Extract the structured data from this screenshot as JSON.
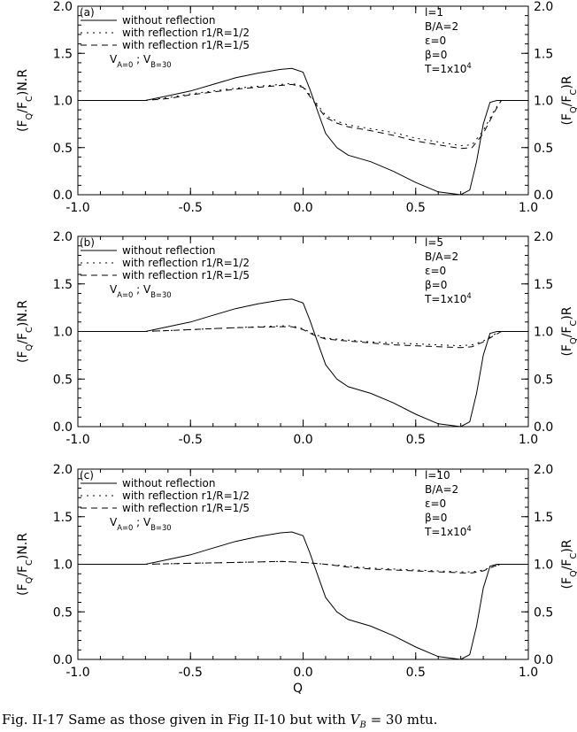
{
  "caption": {
    "prefix": "Fig. II-17 Same as those given in Fig II-10 but with ",
    "var_main": "V",
    "var_sub": "B",
    "suffix": " = 30 mtu."
  },
  "chart_data": [
    {
      "type": "line",
      "panel_label": "(a)",
      "xlabel": "",
      "ylabel_left": "(F_Q/F_C)N.R",
      "ylabel_right": "(F_Q/F_C)R",
      "xlim": [
        -1.0,
        1.0
      ],
      "ylim": [
        0.0,
        2.0
      ],
      "xticks": [
        "-1.0",
        "-0.5",
        "0.0",
        "0.5",
        "1.0"
      ],
      "yticks": [
        "0.0",
        "0.5",
        "1.0",
        "1.5",
        "2.0"
      ],
      "legend": [
        "without reflection",
        "with reflection r1/R=1/2",
        "with reflection r1/R=1/5"
      ],
      "velocity_note": "V_A=0 ; V_B=30",
      "params": [
        "l=1",
        "B/A=2",
        "ε=0",
        "β=0",
        "T=1x10^4"
      ],
      "series": [
        {
          "name": "without reflection",
          "style": "solid",
          "x": [
            -1.0,
            -0.7,
            -0.6,
            -0.5,
            -0.4,
            -0.3,
            -0.2,
            -0.1,
            -0.05,
            0.0,
            0.03,
            0.07,
            0.1,
            0.15,
            0.2,
            0.3,
            0.4,
            0.5,
            0.6,
            0.7,
            0.74,
            0.77,
            0.8,
            0.83,
            0.86,
            0.9,
            1.0
          ],
          "y": [
            1.0,
            1.0,
            1.05,
            1.1,
            1.17,
            1.24,
            1.29,
            1.33,
            1.34,
            1.3,
            1.12,
            0.85,
            0.65,
            0.5,
            0.42,
            0.35,
            0.25,
            0.13,
            0.03,
            0.0,
            0.05,
            0.35,
            0.75,
            0.98,
            1.0,
            1.0,
            1.0
          ]
        },
        {
          "name": "with reflection r1/R=1/2",
          "style": "dotted",
          "x": [
            -1.0,
            -0.7,
            -0.6,
            -0.5,
            -0.4,
            -0.3,
            -0.2,
            -0.1,
            -0.05,
            0.0,
            0.05,
            0.1,
            0.15,
            0.2,
            0.3,
            0.4,
            0.5,
            0.6,
            0.7,
            0.75,
            0.8,
            0.85,
            0.88,
            1.0
          ],
          "y": [
            1.0,
            1.0,
            1.03,
            1.07,
            1.1,
            1.13,
            1.15,
            1.17,
            1.18,
            1.15,
            1.0,
            0.84,
            0.78,
            0.74,
            0.7,
            0.66,
            0.6,
            0.56,
            0.52,
            0.53,
            0.68,
            0.9,
            1.0,
            1.0
          ]
        },
        {
          "name": "with reflection r1/R=1/5",
          "style": "dashed",
          "x": [
            -1.0,
            -0.7,
            -0.6,
            -0.5,
            -0.4,
            -0.3,
            -0.2,
            -0.1,
            -0.05,
            0.0,
            0.05,
            0.1,
            0.15,
            0.2,
            0.3,
            0.4,
            0.5,
            0.6,
            0.7,
            0.75,
            0.8,
            0.85,
            0.88,
            1.0
          ],
          "y": [
            1.0,
            1.0,
            1.02,
            1.06,
            1.09,
            1.12,
            1.14,
            1.16,
            1.17,
            1.14,
            0.98,
            0.82,
            0.76,
            0.72,
            0.68,
            0.63,
            0.57,
            0.53,
            0.49,
            0.5,
            0.65,
            0.88,
            1.0,
            1.0
          ]
        }
      ]
    },
    {
      "type": "line",
      "panel_label": "(b)",
      "xlabel": "",
      "ylabel_left": "(F_Q/F_C)N.R",
      "ylabel_right": "(F_Q/F_C)R",
      "xlim": [
        -1.0,
        1.0
      ],
      "ylim": [
        0.0,
        2.0
      ],
      "xticks": [
        "-1.0",
        "-0.5",
        "0.0",
        "0.5",
        "1.0"
      ],
      "yticks": [
        "0.0",
        "0.5",
        "1.0",
        "1.5",
        "2.0"
      ],
      "legend": [
        "without reflection",
        "with reflection r1/R=1/2",
        "with reflection r1/R=1/5"
      ],
      "velocity_note": "V_A=0 ; V_B=30",
      "params": [
        "l=5",
        "B/A=2",
        "ε=0",
        "β=0",
        "T=1x10^4"
      ],
      "series": [
        {
          "name": "without reflection",
          "style": "solid",
          "x": [
            -1.0,
            -0.7,
            -0.6,
            -0.5,
            -0.4,
            -0.3,
            -0.2,
            -0.1,
            -0.05,
            0.0,
            0.03,
            0.07,
            0.1,
            0.15,
            0.2,
            0.3,
            0.4,
            0.5,
            0.6,
            0.7,
            0.74,
            0.77,
            0.8,
            0.83,
            0.86,
            0.9,
            1.0
          ],
          "y": [
            1.0,
            1.0,
            1.05,
            1.1,
            1.17,
            1.24,
            1.29,
            1.33,
            1.34,
            1.3,
            1.12,
            0.85,
            0.65,
            0.5,
            0.42,
            0.35,
            0.25,
            0.13,
            0.03,
            0.0,
            0.05,
            0.35,
            0.75,
            0.98,
            1.0,
            1.0,
            1.0
          ]
        },
        {
          "name": "with reflection r1/R=1/2",
          "style": "dotted",
          "x": [
            -1.0,
            -0.7,
            -0.5,
            -0.3,
            -0.1,
            -0.05,
            0.0,
            0.05,
            0.1,
            0.2,
            0.3,
            0.4,
            0.5,
            0.6,
            0.7,
            0.75,
            0.8,
            0.85,
            0.88,
            1.0
          ],
          "y": [
            1.0,
            1.0,
            1.02,
            1.04,
            1.06,
            1.06,
            1.03,
            0.97,
            0.93,
            0.91,
            0.89,
            0.88,
            0.87,
            0.86,
            0.85,
            0.86,
            0.9,
            0.97,
            1.0,
            1.0
          ]
        },
        {
          "name": "with reflection r1/R=1/5",
          "style": "dashed",
          "x": [
            -1.0,
            -0.7,
            -0.5,
            -0.3,
            -0.1,
            -0.05,
            0.0,
            0.05,
            0.1,
            0.2,
            0.3,
            0.4,
            0.5,
            0.6,
            0.7,
            0.75,
            0.8,
            0.85,
            0.88,
            1.0
          ],
          "y": [
            1.0,
            1.0,
            1.02,
            1.04,
            1.05,
            1.05,
            1.02,
            0.96,
            0.92,
            0.9,
            0.88,
            0.86,
            0.85,
            0.84,
            0.83,
            0.84,
            0.89,
            0.96,
            1.0,
            1.0
          ]
        }
      ]
    },
    {
      "type": "line",
      "panel_label": "(c)",
      "xlabel": "Q",
      "ylabel_left": "(F_Q/F_C)N.R",
      "ylabel_right": "(F_Q/F_C)R",
      "xlim": [
        -1.0,
        1.0
      ],
      "ylim": [
        0.0,
        2.0
      ],
      "xticks": [
        "-1.0",
        "-0.5",
        "0.0",
        "0.5",
        "1.0"
      ],
      "yticks": [
        "0.0",
        "0.5",
        "1.0",
        "1.5",
        "2.0"
      ],
      "legend": [
        "without reflection",
        "with reflection r1/R=1/2",
        "with reflection r1/R=1/5"
      ],
      "velocity_note": "V_A=0 ; V_B=30",
      "params": [
        "l=10",
        "B/A=2",
        "ε=0",
        "β=0",
        "T=1x10^4"
      ],
      "series": [
        {
          "name": "without reflection",
          "style": "solid",
          "x": [
            -1.0,
            -0.7,
            -0.6,
            -0.5,
            -0.4,
            -0.3,
            -0.2,
            -0.1,
            -0.05,
            0.0,
            0.03,
            0.07,
            0.1,
            0.15,
            0.2,
            0.3,
            0.4,
            0.5,
            0.6,
            0.7,
            0.74,
            0.77,
            0.8,
            0.83,
            0.86,
            0.9,
            1.0
          ],
          "y": [
            1.0,
            1.0,
            1.05,
            1.1,
            1.17,
            1.24,
            1.29,
            1.33,
            1.34,
            1.3,
            1.12,
            0.85,
            0.65,
            0.5,
            0.42,
            0.35,
            0.25,
            0.13,
            0.03,
            0.0,
            0.05,
            0.35,
            0.75,
            0.98,
            1.0,
            1.0,
            1.0
          ]
        },
        {
          "name": "with reflection r1/R=1/2",
          "style": "dotted",
          "x": [
            -1.0,
            -0.7,
            -0.5,
            -0.3,
            -0.1,
            0.0,
            0.1,
            0.2,
            0.3,
            0.4,
            0.5,
            0.6,
            0.7,
            0.75,
            0.8,
            0.85,
            0.88,
            1.0
          ],
          "y": [
            1.0,
            1.0,
            1.01,
            1.02,
            1.03,
            1.02,
            1.0,
            0.98,
            0.96,
            0.95,
            0.94,
            0.93,
            0.92,
            0.92,
            0.94,
            0.98,
            1.0,
            1.0
          ]
        },
        {
          "name": "with reflection r1/R=1/5",
          "style": "dashed",
          "x": [
            -1.0,
            -0.7,
            -0.5,
            -0.3,
            -0.1,
            0.0,
            0.1,
            0.2,
            0.3,
            0.4,
            0.5,
            0.6,
            0.7,
            0.75,
            0.8,
            0.85,
            0.88,
            1.0
          ],
          "y": [
            1.0,
            1.0,
            1.01,
            1.02,
            1.03,
            1.02,
            1.0,
            0.97,
            0.95,
            0.94,
            0.93,
            0.92,
            0.91,
            0.91,
            0.93,
            0.98,
            1.0,
            1.0
          ]
        }
      ]
    }
  ]
}
